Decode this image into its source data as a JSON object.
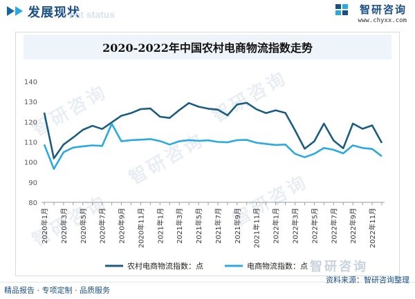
{
  "header": {
    "section_title": "发展现状",
    "ghost_text": "ent status",
    "brand_name": "智研咨询",
    "brand_url": "www.chyxx.com"
  },
  "watermark": {
    "text": "智研咨询",
    "bottom_text": "智研咨询"
  },
  "footer": {
    "left_text": "精品报告 · 专项定制 · 品质服务",
    "source_text": "资料来源：智研咨询整理"
  },
  "colors": {
    "series_1": "#1a5b80",
    "series_2": "#2aa9e0",
    "axis": "#999999",
    "title_bar": "#eef4fa"
  },
  "chart_data": {
    "type": "line",
    "title": "2020-2022年中国农村电商物流指数走势",
    "xlabel": "",
    "ylabel": "",
    "ylim": [
      80,
      140
    ],
    "yticks": [
      80,
      90,
      100,
      110,
      120,
      130,
      140
    ],
    "grid": false,
    "legend_position": "bottom",
    "x": [
      "2020年1月",
      "2020年2月",
      "2020年3月",
      "2020年4月",
      "2020年5月",
      "2020年6月",
      "2020年7月",
      "2020年8月",
      "2020年9月",
      "2020年10月",
      "2020年11月",
      "2020年12月",
      "2021年1月",
      "2021年2月",
      "2021年3月",
      "2021年4月",
      "2021年5月",
      "2021年6月",
      "2021年7月",
      "2021年8月",
      "2021年9月",
      "2021年10月",
      "2021年11月",
      "2021年12月",
      "2022年1月",
      "2022年2月",
      "2022年3月",
      "2022年4月",
      "2022年5月",
      "2022年6月",
      "2022年7月",
      "2022年8月",
      "2022年9月",
      "2022年10月",
      "2022年11月",
      "2022年12月"
    ],
    "xtick_labels": [
      "2020年1月",
      "2020年3月",
      "2020年5月",
      "2020年7月",
      "2020年9月",
      "2020年11月",
      "2021年1月",
      "2021年3月",
      "2021年5月",
      "2021年7月",
      "2021年9月",
      "2021年11月",
      "2022年1月",
      "2022年3月",
      "2022年5月",
      "2022年7月",
      "2022年9月",
      "2022年11月"
    ],
    "series": [
      {
        "name": "农村电商物流指数：点",
        "values": [
          124.5,
          101.8,
          108.7,
          112.2,
          116.0,
          118.0,
          116.4,
          119.7,
          123.0,
          124.3,
          126.3,
          126.6,
          122.5,
          121.9,
          125.8,
          129.3,
          127.5,
          126.5,
          126.0,
          123.2,
          128.6,
          129.4,
          126.2,
          124.3,
          125.7,
          124.4,
          115.8,
          106.6,
          110.3,
          119.1,
          110.7,
          106.8,
          119.1,
          116.5,
          118.2,
          109.5
        ]
      },
      {
        "name": "电商物流指数：点",
        "values": [
          108.7,
          96.6,
          104.9,
          107.2,
          107.8,
          108.3,
          108.0,
          119.0,
          110.3,
          110.9,
          111.1,
          111.4,
          110.4,
          108.7,
          110.3,
          110.9,
          110.5,
          110.8,
          110.0,
          109.8,
          110.9,
          111.0,
          109.6,
          109.0,
          108.5,
          108.7,
          104.1,
          102.4,
          104.1,
          107.0,
          106.1,
          104.3,
          108.3,
          107.0,
          106.5,
          102.9
        ]
      }
    ]
  }
}
